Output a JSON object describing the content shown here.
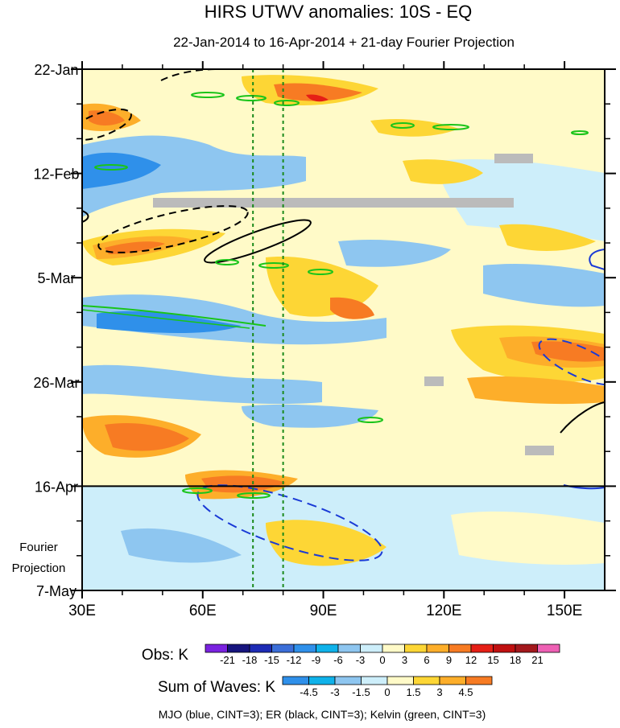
{
  "chart_data": {
    "type": "heatmap",
    "title": "HIRS UTWV anomalies: 10S - EQ",
    "subtitle": "22-Jan-2014 to 16-Apr-2014 + 21-day Fourier Projection",
    "x_axis": {
      "range": [
        30,
        160
      ],
      "ticks": [
        30,
        60,
        90,
        120,
        150
      ],
      "tick_labels": [
        "30E",
        "60E",
        "90E",
        "120E",
        "150E"
      ]
    },
    "y_axis": {
      "range_days": [
        0,
        105
      ],
      "ticks": [
        0,
        21,
        42,
        63,
        84,
        105
      ],
      "tick_labels": [
        "22-Jan",
        "12-Feb",
        "5-Mar",
        "26-Mar",
        "16-Apr",
        "7-May"
      ],
      "observation_end_day": 84
    },
    "projection_label_lines": [
      "Fourier",
      "Projection"
    ],
    "reference_longitudes": [
      72.5,
      80
    ],
    "obs_colorbar": {
      "label": "Obs: K",
      "levels": [
        "-21",
        "-18",
        "-15",
        "-12",
        "-9",
        "-6",
        "-3",
        "0",
        "3",
        "6",
        "9",
        "12",
        "15",
        "18",
        "21"
      ],
      "colors": [
        "#7a22e0",
        "#17157e",
        "#1d2bb5",
        "#3b6ed8",
        "#2f90ea",
        "#0fb2ea",
        "#8ec6f0",
        "#cdeefa",
        "#fffac8",
        "#fdd635",
        "#fdae2a",
        "#f77b23",
        "#e51f16",
        "#c01010",
        "#a3181c",
        "#ee60b4"
      ]
    },
    "waves_colorbar": {
      "label": "Sum of Waves: K",
      "levels": [
        "-4.5",
        "-3",
        "-1.5",
        "0",
        "1.5",
        "3",
        "4.5"
      ],
      "colors": [
        "#2f90ea",
        "#0fb2ea",
        "#8ec6f0",
        "#cdeefa",
        "#fffac8",
        "#fdd635",
        "#fdae2a",
        "#f77b23"
      ]
    },
    "contour_legend": "MJO (blue, CINT=3); ER (black, CINT=3); Kelvin (green, CINT=3)"
  }
}
